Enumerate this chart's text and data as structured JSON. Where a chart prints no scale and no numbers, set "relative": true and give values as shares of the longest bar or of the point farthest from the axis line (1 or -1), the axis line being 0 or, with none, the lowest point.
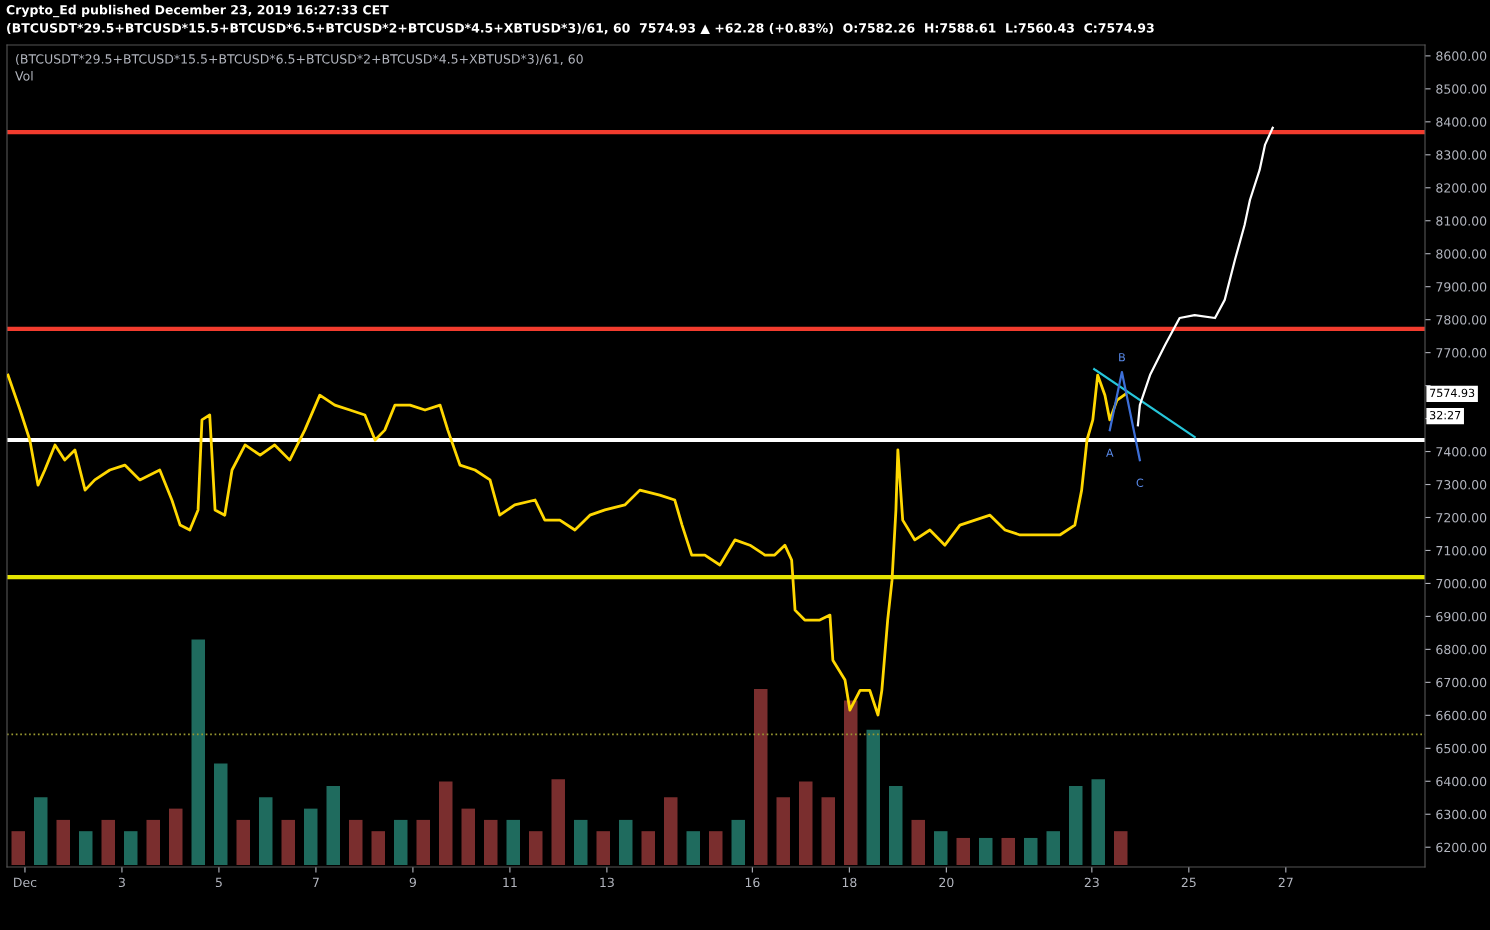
{
  "chart_data": [
    {
      "type": "line",
      "title": "(BTCUSDT*29.5+BTCUSD*15.5+BTCUSD*6.5+BTCUSD*2+BTCUSD*4.5+XBTUSD*3)/61, 60  7574.93 ▲ +62.28 (+0.83%)  O:7582.26  H:7588.61  L:7560.43  C:7574.93",
      "subtitle": "(BTCUSDT*29.5+BTCUSD*15.5+BTCUSD*6.5+BTCUSD*2+BTCUSD*4.5+XBTUSD*3)/61, 60",
      "annotations": [
        "Crypto_Ed published December 23, 2019 16:27:33 CET",
        {
          "text": "A",
          "x": 23.37,
          "y": 7465
        },
        {
          "text": "B",
          "x": 23.62,
          "y": 7641
        },
        {
          "text": "C",
          "x": 23.99,
          "y": 7374
        },
        "7574.93",
        "32:27"
      ],
      "xlim": [
        0.63,
        29.87
      ],
      "ylim": [
        6140,
        8633
      ],
      "xticks": [
        {
          "value": 1,
          "label": "Dec"
        },
        3,
        5,
        7,
        9,
        11,
        13,
        16,
        18,
        20,
        23,
        25,
        27
      ],
      "yticks": [
        {
          "value": 6200,
          "label": "6200.00"
        },
        {
          "value": 6300,
          "label": "6300.00"
        },
        {
          "value": 6400,
          "label": "6400.00"
        },
        {
          "value": 6500,
          "label": "6500.00"
        },
        {
          "value": 6600,
          "label": "6600.00"
        },
        {
          "value": 6700,
          "label": "6700.00"
        },
        {
          "value": 6800,
          "label": "6800.00"
        },
        {
          "value": 6900,
          "label": "6900.00"
        },
        {
          "value": 7000,
          "label": "7000.00"
        },
        {
          "value": 7100,
          "label": "7100.00"
        },
        {
          "value": 7200,
          "label": "7200.00"
        },
        {
          "value": 7300,
          "label": "7300.00"
        },
        {
          "value": 7400,
          "label": "7400.00"
        },
        {
          "value": 7500,
          "label": null
        },
        {
          "value": 7600,
          "label": null
        },
        {
          "value": 7700,
          "label": "7700.00"
        },
        {
          "value": 7800,
          "label": "7800.00"
        },
        {
          "value": 7900,
          "label": "7900.00"
        },
        {
          "value": 8000,
          "label": "8000.00"
        },
        {
          "value": 8100,
          "label": "8100.00"
        },
        {
          "value": 8200,
          "label": "8200.00"
        },
        {
          "value": 8300,
          "label": "8300.00"
        },
        {
          "value": 8400,
          "label": "8400.00"
        },
        {
          "value": 8500,
          "label": "8500.00"
        },
        {
          "value": 8600,
          "label": "8600.00"
        }
      ],
      "ref_lines": [
        {
          "axis": "y",
          "value": 8369,
          "color": "#f23c2e",
          "line_style": "solid"
        },
        {
          "axis": "y",
          "value": 7772,
          "color": "#f23c2e",
          "line_style": "solid"
        },
        {
          "axis": "y",
          "value": 7435,
          "color": "#ffffff",
          "line_style": "solid"
        },
        {
          "axis": "y",
          "value": 7019,
          "color": "#e5e500",
          "line_style": "solid"
        },
        {
          "axis": "y",
          "value": 6542,
          "color": "#9a9a30",
          "line_style": "dotted"
        }
      ],
      "series": [
        {
          "color": "#ffd700",
          "x": [
            0.65,
            0.9,
            1.1,
            1.27,
            1.41,
            1.62,
            1.82,
            2.03,
            2.24,
            2.44,
            2.75,
            3.06,
            3.37,
            3.78,
            4.03,
            4.2,
            4.4,
            4.57,
            4.65,
            4.81,
            4.92,
            5.12,
            5.27,
            5.54,
            5.85,
            6.15,
            6.46,
            6.77,
            7.08,
            7.39,
            7.7,
            8.01,
            8.22,
            8.42,
            8.63,
            8.94,
            9.25,
            9.56,
            9.72,
            9.97,
            10.28,
            10.59,
            10.79,
            11.1,
            11.52,
            11.72,
            12.03,
            12.34,
            12.65,
            12.96,
            13.37,
            13.68,
            14.09,
            14.4,
            14.55,
            14.75,
            15.02,
            15.33,
            15.64,
            15.95,
            16.26,
            16.46,
            16.67,
            16.81,
            16.88,
            17.08,
            17.39,
            17.6,
            17.66,
            17.91,
            18.01,
            18.22,
            18.42,
            18.59,
            18.67,
            18.79,
            18.88,
            18.96,
            19.0,
            19.1,
            19.35,
            19.66,
            19.97,
            20.28,
            20.59,
            20.9,
            21.21,
            21.52,
            21.93,
            22.34,
            22.65,
            22.79,
            22.9,
            23.02,
            23.12,
            23.27,
            23.37,
            23.52,
            23.7
          ],
          "values": [
            7632,
            7526,
            7435,
            7298,
            7344,
            7420,
            7374,
            7405,
            7283,
            7314,
            7344,
            7359,
            7314,
            7344,
            7253,
            7177,
            7162,
            7223,
            7496,
            7511,
            7223,
            7207,
            7344,
            7420,
            7389,
            7420,
            7374,
            7465,
            7571,
            7541,
            7526,
            7511,
            7435,
            7465,
            7541,
            7541,
            7526,
            7541,
            7465,
            7359,
            7344,
            7314,
            7207,
            7238,
            7253,
            7192,
            7192,
            7162,
            7207,
            7223,
            7238,
            7283,
            7268,
            7253,
            7177,
            7086,
            7086,
            7056,
            7132,
            7116,
            7086,
            7086,
            7116,
            7071,
            6919,
            6889,
            6889,
            6904,
            6767,
            6707,
            6616,
            6676,
            6676,
            6601,
            6676,
            6889,
            7010,
            7223,
            7405,
            7192,
            7132,
            7162,
            7116,
            7177,
            7192,
            7207,
            7162,
            7147,
            7147,
            7147,
            7177,
            7283,
            7435,
            7496,
            7632,
            7571,
            7496,
            7556,
            7575
          ]
        },
        {
          "color": "#26c6da",
          "x": [
            23.05,
            25.12
          ],
          "values": [
            7650,
            7444
          ]
        },
        {
          "color": "#3d6fd8",
          "x": [
            23.37,
            23.62,
            23.99
          ],
          "values": [
            7465,
            7641,
            7374
          ]
        },
        {
          "color": "#ffffff",
          "x": [
            23.95,
            23.99,
            24.2,
            24.51,
            24.81,
            25.12,
            25.54,
            25.74,
            25.95,
            26.15,
            26.26,
            26.46,
            26.57,
            26.73
          ],
          "values": [
            7480,
            7541,
            7632,
            7723,
            7805,
            7814,
            7805,
            7860,
            7981,
            8087,
            8163,
            8254,
            8330,
            8382
          ]
        }
      ],
      "grid": false,
      "legend": false,
      "marker": "none",
      "line_style": "solid"
    },
    {
      "type": "bar",
      "title": "Vol",
      "relative": true,
      "tick_labels": false,
      "categories": [
        null,
        null,
        null,
        null,
        null,
        null,
        null,
        null,
        null,
        null,
        null,
        null,
        null,
        null,
        null,
        null,
        null,
        null,
        null,
        null,
        null,
        null,
        null,
        null,
        null,
        null,
        null,
        null,
        null,
        null,
        null,
        null,
        null,
        null,
        null,
        null,
        null,
        null,
        null,
        null,
        null,
        null,
        null,
        null,
        null,
        null,
        null,
        null,
        null,
        null
      ],
      "values": [
        0.15,
        0.3,
        0.2,
        0.15,
        0.2,
        0.15,
        0.2,
        0.25,
        1.0,
        0.45,
        0.2,
        0.3,
        0.2,
        0.25,
        0.35,
        0.2,
        0.15,
        0.2,
        0.2,
        0.37,
        0.25,
        0.2,
        0.2,
        0.15,
        0.38,
        0.2,
        0.15,
        0.2,
        0.15,
        0.3,
        0.15,
        0.15,
        0.2,
        0.78,
        0.3,
        0.37,
        0.3,
        0.73,
        0.6,
        0.35,
        0.2,
        0.15,
        0.12,
        0.12,
        0.12,
        0.12,
        0.15,
        0.35,
        0.38,
        0.15
      ],
      "colors": [
        "#7a2e2e",
        "#1f6b5e",
        "#7a2e2e",
        "#1f6b5e",
        "#7a2e2e",
        "#1f6b5e",
        "#7a2e2e",
        "#7a2e2e",
        "#1f6b5e",
        "#1f6b5e",
        "#7a2e2e",
        "#1f6b5e",
        "#7a2e2e",
        "#1f6b5e",
        "#1f6b5e",
        "#7a2e2e",
        "#7a2e2e",
        "#1f6b5e",
        "#7a2e2e",
        "#7a2e2e",
        "#7a2e2e",
        "#7a2e2e",
        "#1f6b5e",
        "#7a2e2e",
        "#7a2e2e",
        "#1f6b5e",
        "#7a2e2e",
        "#1f6b5e",
        "#7a2e2e",
        "#7a2e2e",
        "#1f6b5e",
        "#7a2e2e",
        "#1f6b5e",
        "#7a2e2e",
        "#7a2e2e",
        "#7a2e2e",
        "#7a2e2e",
        "#7a2e2e",
        "#1f6b5e",
        "#1f6b5e",
        "#7a2e2e",
        "#1f6b5e",
        "#7a2e2e",
        "#1f6b5e",
        "#7a2e2e",
        "#1f6b5e",
        "#1f6b5e",
        "#1f6b5e",
        "#1f6b5e",
        "#7a2e2e"
      ]
    }
  ]
}
